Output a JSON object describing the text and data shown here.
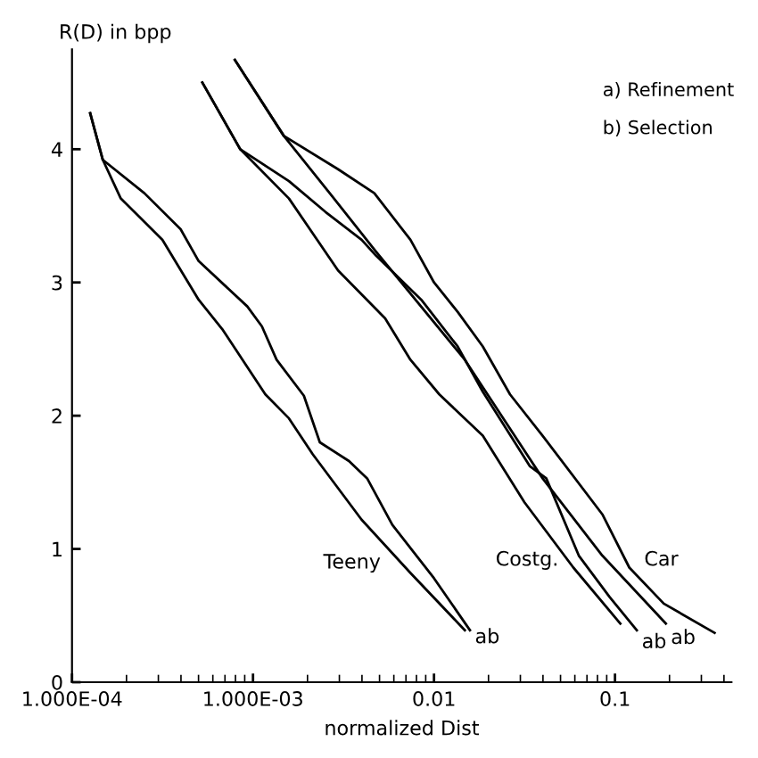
{
  "chart_data": {
    "type": "line",
    "xlabel": "normalized Dist",
    "ylabel": "R(D) in bpp",
    "log": "x",
    "xlim": [
      0.0001,
      0.44
    ],
    "ylim": [
      0,
      4.75
    ],
    "xticks": [
      {
        "value": 0.0001,
        "label": "1.000E-04"
      },
      {
        "value": 0.001,
        "label": "1.000E-03"
      },
      0.01,
      0.1
    ],
    "yticks": [
      0,
      1,
      2,
      3,
      4
    ],
    "grid": false,
    "line_style": "solid",
    "marker": "none",
    "series": [
      {
        "color": "#000000",
        "x": [
          0.000126,
          0.000148,
          0.000251,
          0.000398,
          0.000501,
          0.00093,
          0.00112,
          0.00135,
          0.00191,
          0.00234,
          0.00339,
          0.00427,
          0.00589,
          0.01,
          0.0158
        ],
        "values": [
          4.27,
          3.92,
          3.67,
          3.4,
          3.16,
          2.82,
          2.67,
          2.42,
          2.15,
          1.8,
          1.66,
          1.53,
          1.18,
          0.78,
          0.39
        ]
      },
      {
        "color": "#000000",
        "x": [
          0.000126,
          0.000148,
          0.000186,
          0.000316,
          0.000501,
          0.000676,
          0.00117,
          0.00158,
          0.00214,
          0.00398,
          0.00741,
          0.0148
        ],
        "values": [
          4.27,
          3.92,
          3.63,
          3.32,
          2.87,
          2.65,
          2.16,
          1.98,
          1.71,
          1.22,
          0.82,
          0.39
        ]
      },
      {
        "color": "#000000",
        "x": [
          0.000525,
          0.00085,
          0.00158,
          0.00295,
          0.00537,
          0.00741,
          0.0107,
          0.0186,
          0.0316,
          0.0589,
          0.107
        ],
        "values": [
          4.5,
          4.0,
          3.63,
          3.09,
          2.73,
          2.42,
          2.16,
          1.85,
          1.35,
          0.86,
          0.44
        ]
      },
      {
        "color": "#000000",
        "x": [
          0.000525,
          0.00085,
          0.00158,
          0.00251,
          0.00398,
          0.00479,
          0.00851,
          0.0135,
          0.0186,
          0.0339,
          0.0417,
          0.0631,
          0.0933,
          0.132
        ],
        "values": [
          4.5,
          4.0,
          3.76,
          3.53,
          3.32,
          3.2,
          2.87,
          2.52,
          2.18,
          1.62,
          1.53,
          0.95,
          0.64,
          0.39
        ]
      },
      {
        "color": "#000000",
        "x": [
          0.000794,
          0.00148,
          0.00269,
          0.00479,
          0.0148,
          0.0398,
          0.0851,
          0.191
        ],
        "values": [
          4.67,
          4.1,
          3.66,
          3.23,
          2.42,
          1.53,
          0.95,
          0.44
        ]
      },
      {
        "color": "#000000",
        "x": [
          0.000794,
          0.00148,
          0.00295,
          0.00468,
          0.00741,
          0.01,
          0.0135,
          0.0186,
          0.0263,
          0.0398,
          0.0851,
          0.12,
          0.186,
          0.355
        ],
        "values": [
          4.67,
          4.1,
          3.85,
          3.67,
          3.32,
          3.0,
          2.78,
          2.52,
          2.16,
          1.85,
          1.26,
          0.86,
          0.59,
          0.37
        ]
      }
    ],
    "annotations": [
      {
        "text": "Teeny",
        "x": 0.00741,
        "y": 0.82
      },
      {
        "text": "Costg.",
        "x": 0.0589,
        "y": 0.86
      },
      {
        "text": "Car",
        "x": 0.12,
        "y": 0.86
      },
      {
        "text": "ab",
        "x": 0.0158,
        "y": 0.39
      },
      {
        "text": "ab",
        "x": 0.132,
        "y": 0.39
      },
      {
        "text": "ab",
        "x": 0.191,
        "y": 0.44
      },
      "a) Refinement",
      "b) Selection"
    ]
  }
}
